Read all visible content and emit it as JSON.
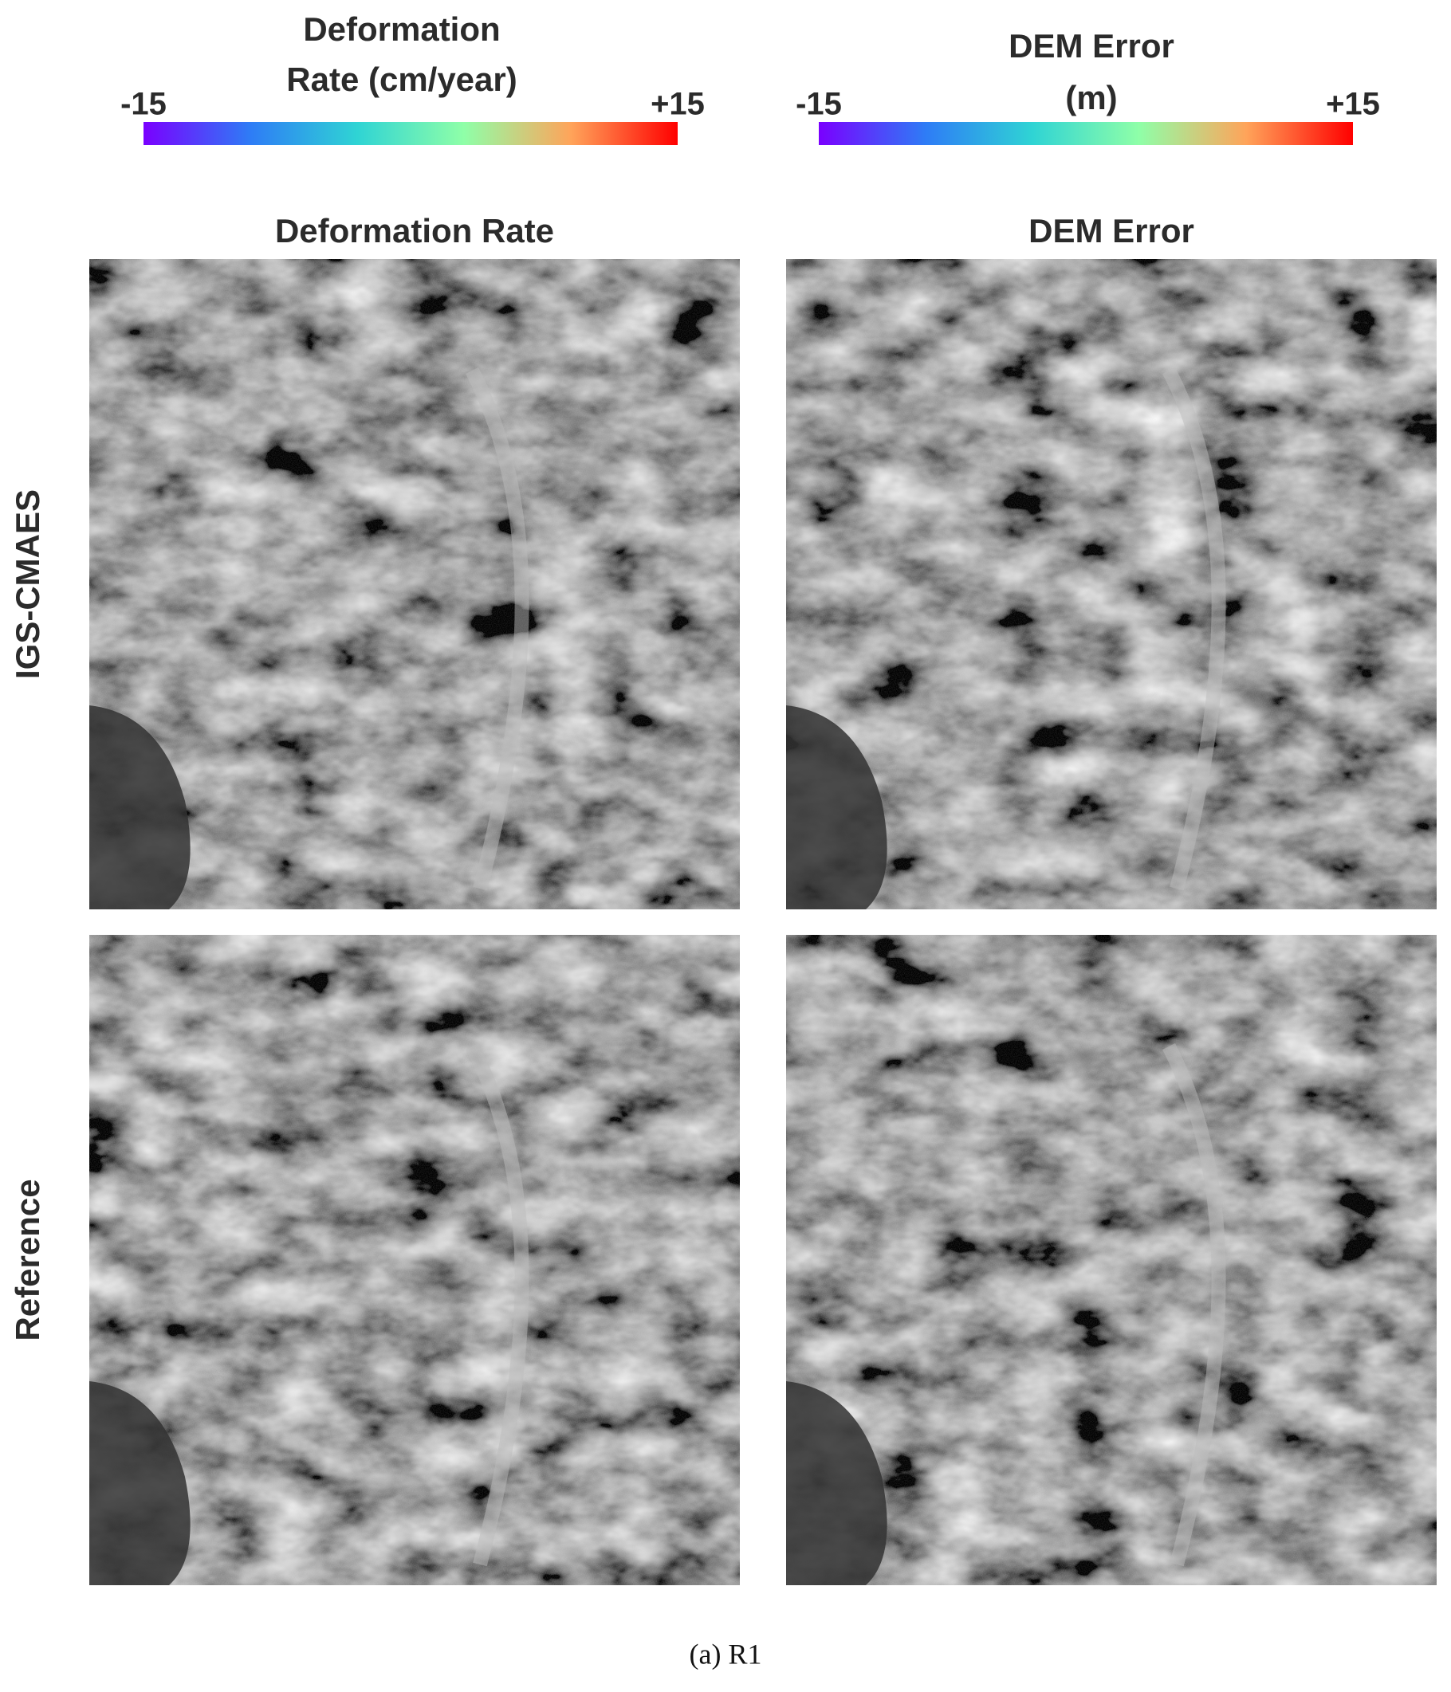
{
  "colorbars": [
    {
      "title": [
        "Deformation",
        "Rate (cm/year)"
      ],
      "lim": [
        -15,
        15
      ],
      "ticks": [
        -15,
        {
          "value": 15,
          "label": "+15"
        }
      ]
    },
    {
      "title": [
        "DEM Error",
        "(m)"
      ],
      "lim": [
        -15,
        15
      ],
      "ticks": [
        -15,
        {
          "value": 15,
          "label": "+15"
        }
      ]
    }
  ],
  "columns": [
    "Deformation Rate",
    "DEM  Error"
  ],
  "rows": [
    "IGS-CMAES",
    "Reference"
  ],
  "caption": "(a) R1"
}
